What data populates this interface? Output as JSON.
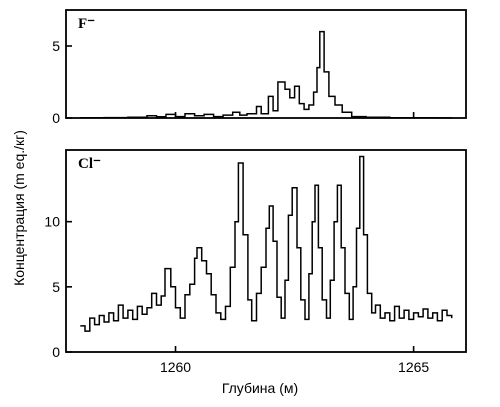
{
  "chart_data": {
    "type": "line",
    "xlabel": "Глубина (м)",
    "ylabel": "Концентрация (m eq./кг)",
    "x_ticks": [
      1260,
      1265
    ],
    "xlim": [
      1257.7,
      1266.1
    ],
    "panels": [
      {
        "id": "F",
        "label": "F⁻",
        "ylim": [
          0,
          7.5
        ],
        "y_ticks": [
          0,
          5
        ],
        "series": [
          {
            "points": [
              [
                1258.0,
                0.02
              ],
              [
                1258.5,
                0.03
              ],
              [
                1259.0,
                0.05
              ],
              [
                1259.4,
                0.15
              ],
              [
                1259.6,
                0.08
              ],
              [
                1259.8,
                0.25
              ],
              [
                1260.0,
                0.1
              ],
              [
                1260.2,
                0.3
              ],
              [
                1260.4,
                0.15
              ],
              [
                1260.6,
                0.25
              ],
              [
                1260.8,
                0.1
              ],
              [
                1261.0,
                0.2
              ],
              [
                1261.2,
                0.4
              ],
              [
                1261.35,
                0.2
              ],
              [
                1261.5,
                0.3
              ],
              [
                1261.7,
                0.8
              ],
              [
                1261.8,
                0.3
              ],
              [
                1261.95,
                1.5
              ],
              [
                1262.05,
                0.5
              ],
              [
                1262.15,
                2.5
              ],
              [
                1262.3,
                2.0
              ],
              [
                1262.4,
                1.4
              ],
              [
                1262.5,
                2.2
              ],
              [
                1262.6,
                1.0
              ],
              [
                1262.7,
                0.6
              ],
              [
                1262.8,
                0.9
              ],
              [
                1262.9,
                1.8
              ],
              [
                1262.97,
                3.5
              ],
              [
                1263.03,
                6.0
              ],
              [
                1263.12,
                3.2
              ],
              [
                1263.22,
                1.5
              ],
              [
                1263.35,
                0.9
              ],
              [
                1263.5,
                0.4
              ],
              [
                1263.7,
                0.1
              ],
              [
                1264.0,
                0.05
              ],
              [
                1264.5,
                0.02
              ],
              [
                1265.0,
                0.02
              ],
              [
                1265.5,
                0.01
              ],
              [
                1265.8,
                0.01
              ]
            ]
          }
        ]
      },
      {
        "id": "Cl",
        "label": "Cl⁻",
        "ylim": [
          0,
          15.5
        ],
        "y_ticks": [
          0,
          5,
          10
        ],
        "series": [
          {
            "points": [
              [
                1258.0,
                2.0
              ],
              [
                1258.1,
                1.6
              ],
              [
                1258.2,
                2.6
              ],
              [
                1258.3,
                2.1
              ],
              [
                1258.4,
                2.8
              ],
              [
                1258.5,
                2.3
              ],
              [
                1258.6,
                3.0
              ],
              [
                1258.7,
                2.4
              ],
              [
                1258.8,
                3.6
              ],
              [
                1258.9,
                2.6
              ],
              [
                1259.0,
                3.2
              ],
              [
                1259.1,
                2.5
              ],
              [
                1259.2,
                3.5
              ],
              [
                1259.3,
                2.9
              ],
              [
                1259.4,
                3.4
              ],
              [
                1259.5,
                4.5
              ],
              [
                1259.6,
                3.6
              ],
              [
                1259.7,
                4.3
              ],
              [
                1259.78,
                6.4
              ],
              [
                1259.9,
                5.0
              ],
              [
                1260.0,
                3.4
              ],
              [
                1260.1,
                2.6
              ],
              [
                1260.2,
                4.4
              ],
              [
                1260.3,
                5.2
              ],
              [
                1260.4,
                7.2
              ],
              [
                1260.45,
                8.0
              ],
              [
                1260.55,
                7.0
              ],
              [
                1260.65,
                6.0
              ],
              [
                1260.75,
                4.4
              ],
              [
                1260.85,
                3.0
              ],
              [
                1260.95,
                2.5
              ],
              [
                1261.05,
                3.5
              ],
              [
                1261.15,
                6.5
              ],
              [
                1261.25,
                10.0
              ],
              [
                1261.32,
                14.5
              ],
              [
                1261.42,
                9.0
              ],
              [
                1261.52,
                4.0
              ],
              [
                1261.6,
                2.4
              ],
              [
                1261.7,
                4.5
              ],
              [
                1261.8,
                6.5
              ],
              [
                1261.9,
                9.5
              ],
              [
                1261.97,
                11.2
              ],
              [
                1262.05,
                8.5
              ],
              [
                1262.13,
                4.2
              ],
              [
                1262.22,
                2.6
              ],
              [
                1262.3,
                5.5
              ],
              [
                1262.37,
                10.5
              ],
              [
                1262.45,
                12.6
              ],
              [
                1262.55,
                8.0
              ],
              [
                1262.63,
                4.0
              ],
              [
                1262.72,
                2.5
              ],
              [
                1262.8,
                6.0
              ],
              [
                1262.87,
                10.0
              ],
              [
                1262.93,
                12.8
              ],
              [
                1263.0,
                8.0
              ],
              [
                1263.08,
                4.0
              ],
              [
                1263.17,
                2.6
              ],
              [
                1263.25,
                5.5
              ],
              [
                1263.33,
                10.0
              ],
              [
                1263.4,
                12.8
              ],
              [
                1263.48,
                8.0
              ],
              [
                1263.56,
                4.5
              ],
              [
                1263.65,
                2.5
              ],
              [
                1263.73,
                5.0
              ],
              [
                1263.8,
                9.5
              ],
              [
                1263.87,
                15.0
              ],
              [
                1263.95,
                9.0
              ],
              [
                1264.03,
                4.5
              ],
              [
                1264.12,
                3.0
              ],
              [
                1264.2,
                3.6
              ],
              [
                1264.3,
                2.6
              ],
              [
                1264.4,
                3.0
              ],
              [
                1264.5,
                2.4
              ],
              [
                1264.6,
                3.5
              ],
              [
                1264.7,
                2.6
              ],
              [
                1264.8,
                3.2
              ],
              [
                1264.9,
                2.5
              ],
              [
                1265.0,
                3.0
              ],
              [
                1265.1,
                2.7
              ],
              [
                1265.2,
                3.3
              ],
              [
                1265.3,
                2.6
              ],
              [
                1265.4,
                3.0
              ],
              [
                1265.5,
                2.4
              ],
              [
                1265.6,
                3.2
              ],
              [
                1265.7,
                2.8
              ],
              [
                1265.8,
                2.6
              ]
            ]
          }
        ]
      }
    ]
  }
}
